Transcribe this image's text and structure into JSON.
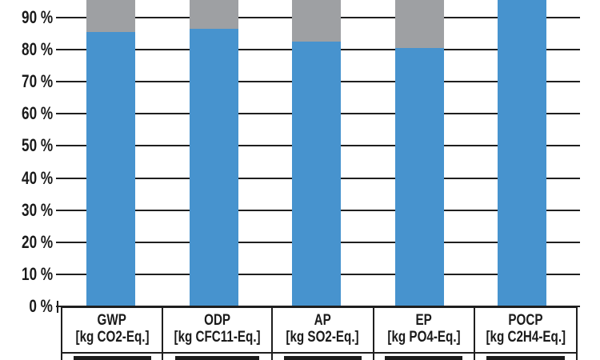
{
  "chart_data": {
    "type": "bar",
    "stacked": true,
    "orientation": "vertical",
    "categories": [
      "GWP",
      "ODP",
      "AP",
      "EP",
      "POCP"
    ],
    "category_units": [
      "[kg CO2-Eq.]",
      "[kg CFC11-Eq.]",
      "[kg SO2-Eq.]",
      "[kg PO4-Eq.]",
      "[kg C2H4-Eq.]"
    ],
    "series": [
      {
        "name": "blue-lower-segment",
        "color": "#4793ce",
        "values": [
          85.5,
          86.5,
          82.5,
          80.5,
          100
        ]
      },
      {
        "name": "gray-upper-segment",
        "color": "#9ea0a3",
        "values": [
          14.5,
          13.5,
          17.5,
          19.5,
          0
        ]
      }
    ],
    "y_axis": {
      "unit": "%",
      "ticks": [
        0,
        10,
        20,
        30,
        40,
        50,
        60,
        70,
        80,
        90
      ],
      "tick_labels": [
        "0 %",
        "10 %",
        "20 %",
        "30 %",
        "40 %",
        "50 %",
        "60 %",
        "70 %",
        "80 %",
        "90 %"
      ],
      "stack_total": 100,
      "visible_top_percent": 95.5,
      "grid": true
    },
    "colors": {
      "bar_blue": "#4793ce",
      "bar_gray": "#9ea0a3",
      "line": "#1f1f1f",
      "background": "#ffffff"
    }
  }
}
